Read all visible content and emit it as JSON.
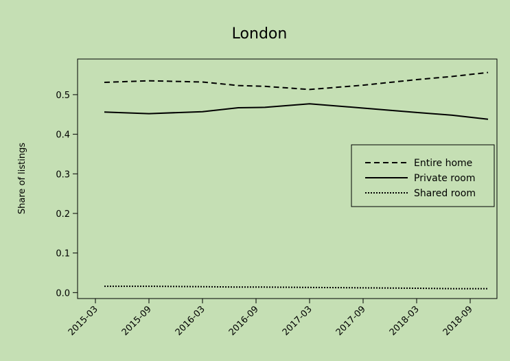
{
  "chart_data": {
    "type": "line",
    "title": "London",
    "xlabel": "",
    "ylabel": "Share of listings",
    "x_ticks": [
      "2015-03",
      "2015-09",
      "2016-03",
      "2016-09",
      "2017-03",
      "2017-09",
      "2018-03",
      "2018-09"
    ],
    "y_ticks": [
      "0.0",
      "0.1",
      "0.2",
      "0.3",
      "0.4",
      "0.5"
    ],
    "x_range": [
      "2015-01",
      "2018-12"
    ],
    "ylim": [
      -0.015,
      0.59
    ],
    "grid": false,
    "legend_position": "right",
    "series": [
      {
        "name": "Entire home",
        "style": "dashed",
        "points": [
          {
            "x": "2015-04",
            "y": 0.531
          },
          {
            "x": "2015-09",
            "y": 0.535
          },
          {
            "x": "2016-03",
            "y": 0.532
          },
          {
            "x": "2016-07",
            "y": 0.523
          },
          {
            "x": "2016-10",
            "y": 0.521
          },
          {
            "x": "2017-03",
            "y": 0.513
          },
          {
            "x": "2017-09",
            "y": 0.524
          },
          {
            "x": "2018-03",
            "y": 0.538
          },
          {
            "x": "2018-07",
            "y": 0.546
          },
          {
            "x": "2018-11",
            "y": 0.556
          }
        ]
      },
      {
        "name": "Private room",
        "style": "solid",
        "points": [
          {
            "x": "2015-04",
            "y": 0.456
          },
          {
            "x": "2015-09",
            "y": 0.452
          },
          {
            "x": "2016-03",
            "y": 0.457
          },
          {
            "x": "2016-07",
            "y": 0.467
          },
          {
            "x": "2016-10",
            "y": 0.468
          },
          {
            "x": "2017-03",
            "y": 0.477
          },
          {
            "x": "2017-09",
            "y": 0.466
          },
          {
            "x": "2018-03",
            "y": 0.455
          },
          {
            "x": "2018-07",
            "y": 0.448
          },
          {
            "x": "2018-11",
            "y": 0.438
          }
        ]
      },
      {
        "name": "Shared room",
        "style": "dotted",
        "points": [
          {
            "x": "2015-04",
            "y": 0.016
          },
          {
            "x": "2015-09",
            "y": 0.016
          },
          {
            "x": "2016-03",
            "y": 0.015
          },
          {
            "x": "2016-07",
            "y": 0.014
          },
          {
            "x": "2016-10",
            "y": 0.014
          },
          {
            "x": "2017-03",
            "y": 0.013
          },
          {
            "x": "2017-09",
            "y": 0.012
          },
          {
            "x": "2018-03",
            "y": 0.011
          },
          {
            "x": "2018-07",
            "y": 0.01
          },
          {
            "x": "2018-11",
            "y": 0.01
          }
        ]
      }
    ]
  }
}
